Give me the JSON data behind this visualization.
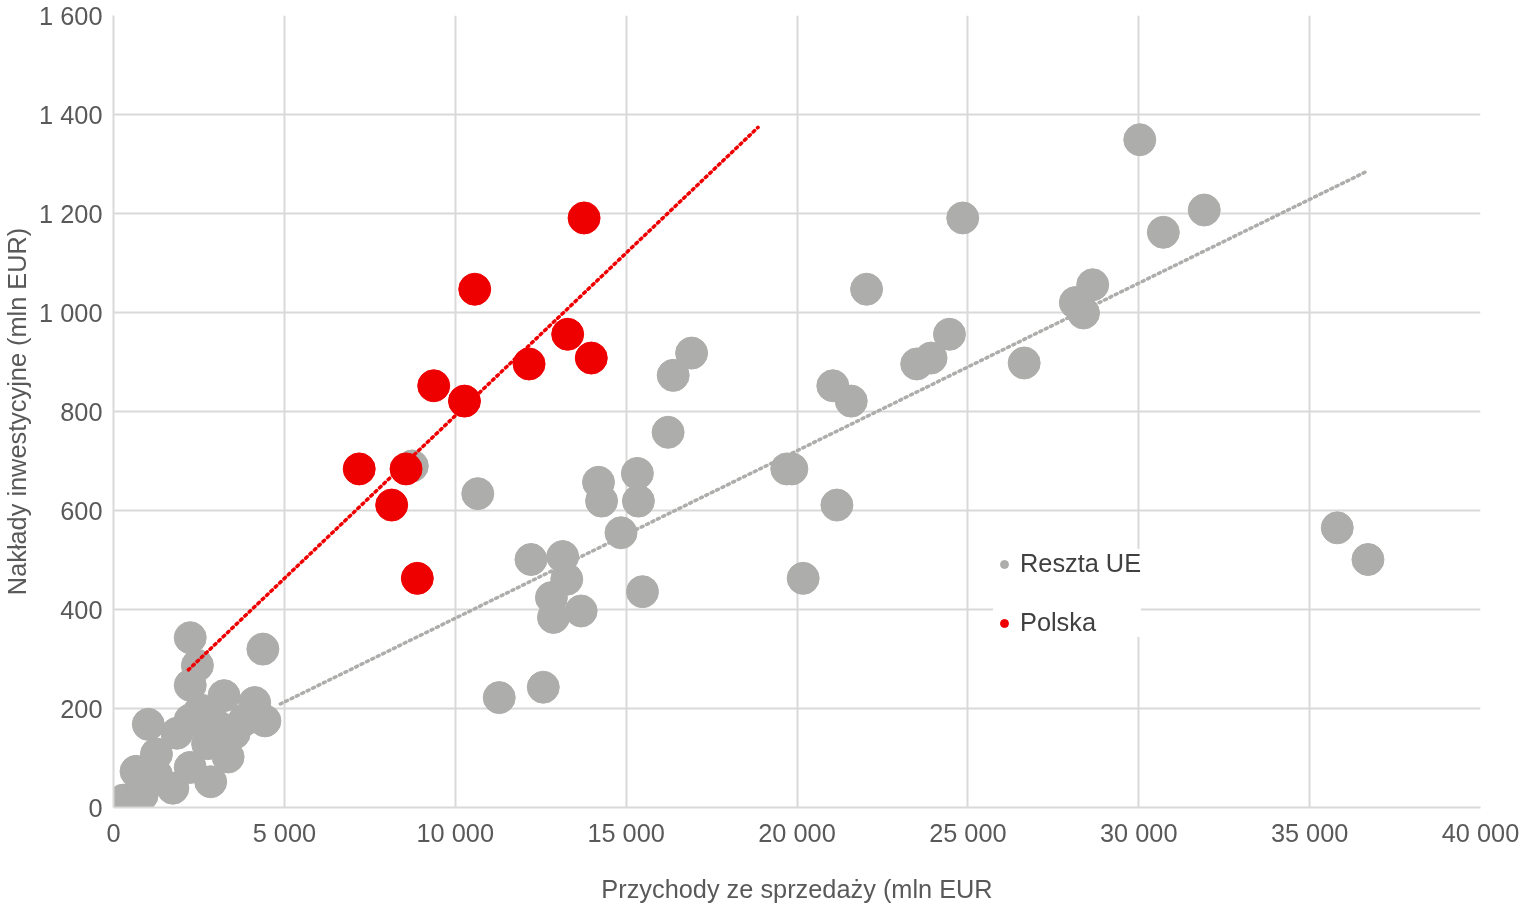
{
  "chart_data": {
    "type": "scatter",
    "xlabel": "Przychody ze sprzedaży (mln EUR",
    "ylabel": "Nakłady inwestycyjne (mln EUR)",
    "xlim": [
      0,
      40000
    ],
    "ylim": [
      0,
      1600
    ],
    "xticks": [
      0,
      {
        "value": 5000,
        "label": "5 000"
      },
      {
        "value": 10000,
        "label": "10 000"
      },
      {
        "value": 15000,
        "label": "15 000"
      },
      {
        "value": 20000,
        "label": "20 000"
      },
      {
        "value": 25000,
        "label": "25 000"
      },
      {
        "value": 30000,
        "label": "30 000"
      },
      {
        "value": 35000,
        "label": "35 000"
      },
      {
        "value": 40000,
        "label": "40 000"
      }
    ],
    "yticks": [
      0,
      200,
      400,
      600,
      800,
      {
        "value": 1000,
        "label": "1 000"
      },
      {
        "value": 1200,
        "label": "1 200"
      },
      {
        "value": 1400,
        "label": "1 400"
      },
      {
        "value": 1600,
        "label": "1 600"
      }
    ],
    "grid": true,
    "legend": "center",
    "series": [
      {
        "name": "Reszta UE",
        "marker": "circle",
        "color": "#adadab",
        "x": [
          299,
          838,
          1737,
          659,
          1257,
          2245,
          1257,
          2844,
          1856,
          2754,
          3353,
          3533,
          2245,
          3054,
          3832,
          2545,
          4431,
          4132,
          3234,
          2245,
          1018,
          2245,
          2455,
          4371,
          8743,
          10659,
          11287,
          12575,
          12216,
          13144,
          13263,
          12814,
          12874,
          13683,
          14850,
          14192,
          14281,
          15329,
          15359,
          15479,
          16228,
          16377,
          16916,
          19701,
          19850,
          20180,
          21048,
          21168,
          21587,
          22036,
          23503,
          23922,
          24461,
          24850,
          26647,
          28144,
          28383,
          28653,
          30030,
          30719,
          31916,
          35808,
          36707
        ],
        "values": [
          15,
          25,
          39,
          73,
          66,
          81,
          108,
          52,
          150,
          129,
          102,
          150,
          177,
          164,
          177,
          197,
          175,
          212,
          226,
          247,
          168,
          343,
          287,
          320,
          690,
          634,
          222,
          243,
          501,
          507,
          461,
          424,
          384,
          397,
          555,
          657,
          619,
          675,
          619,
          436,
          758,
          873,
          918,
          684,
          684,
          463,
          852,
          611,
          821,
          1047,
          896,
          908,
          956,
          1191,
          898,
          1020,
          999,
          1056,
          1349,
          1162,
          1207,
          565,
          501
        ]
      },
      {
        "name": "Polska",
        "marker": "circle",
        "color": "#ee0000",
        "x": [
          7190,
          8140,
          8560,
          8890,
          9370,
          10270,
          10570,
          12160,
          13290,
          13770,
          13980
        ],
        "values": [
          684,
          611,
          684,
          463,
          852,
          821,
          1047,
          896,
          956,
          1191,
          908
        ]
      },
      {
        "type": "line",
        "line_style": "dotted",
        "color": "#adadab",
        "x": [
          4880,
          36700
        ],
        "values": [
          209,
          1286
        ]
      },
      {
        "type": "line",
        "line_style": "dotted",
        "color": "#ee0000",
        "x": [
          2190,
          18860
        ],
        "values": [
          278,
          1374
        ]
      }
    ]
  }
}
